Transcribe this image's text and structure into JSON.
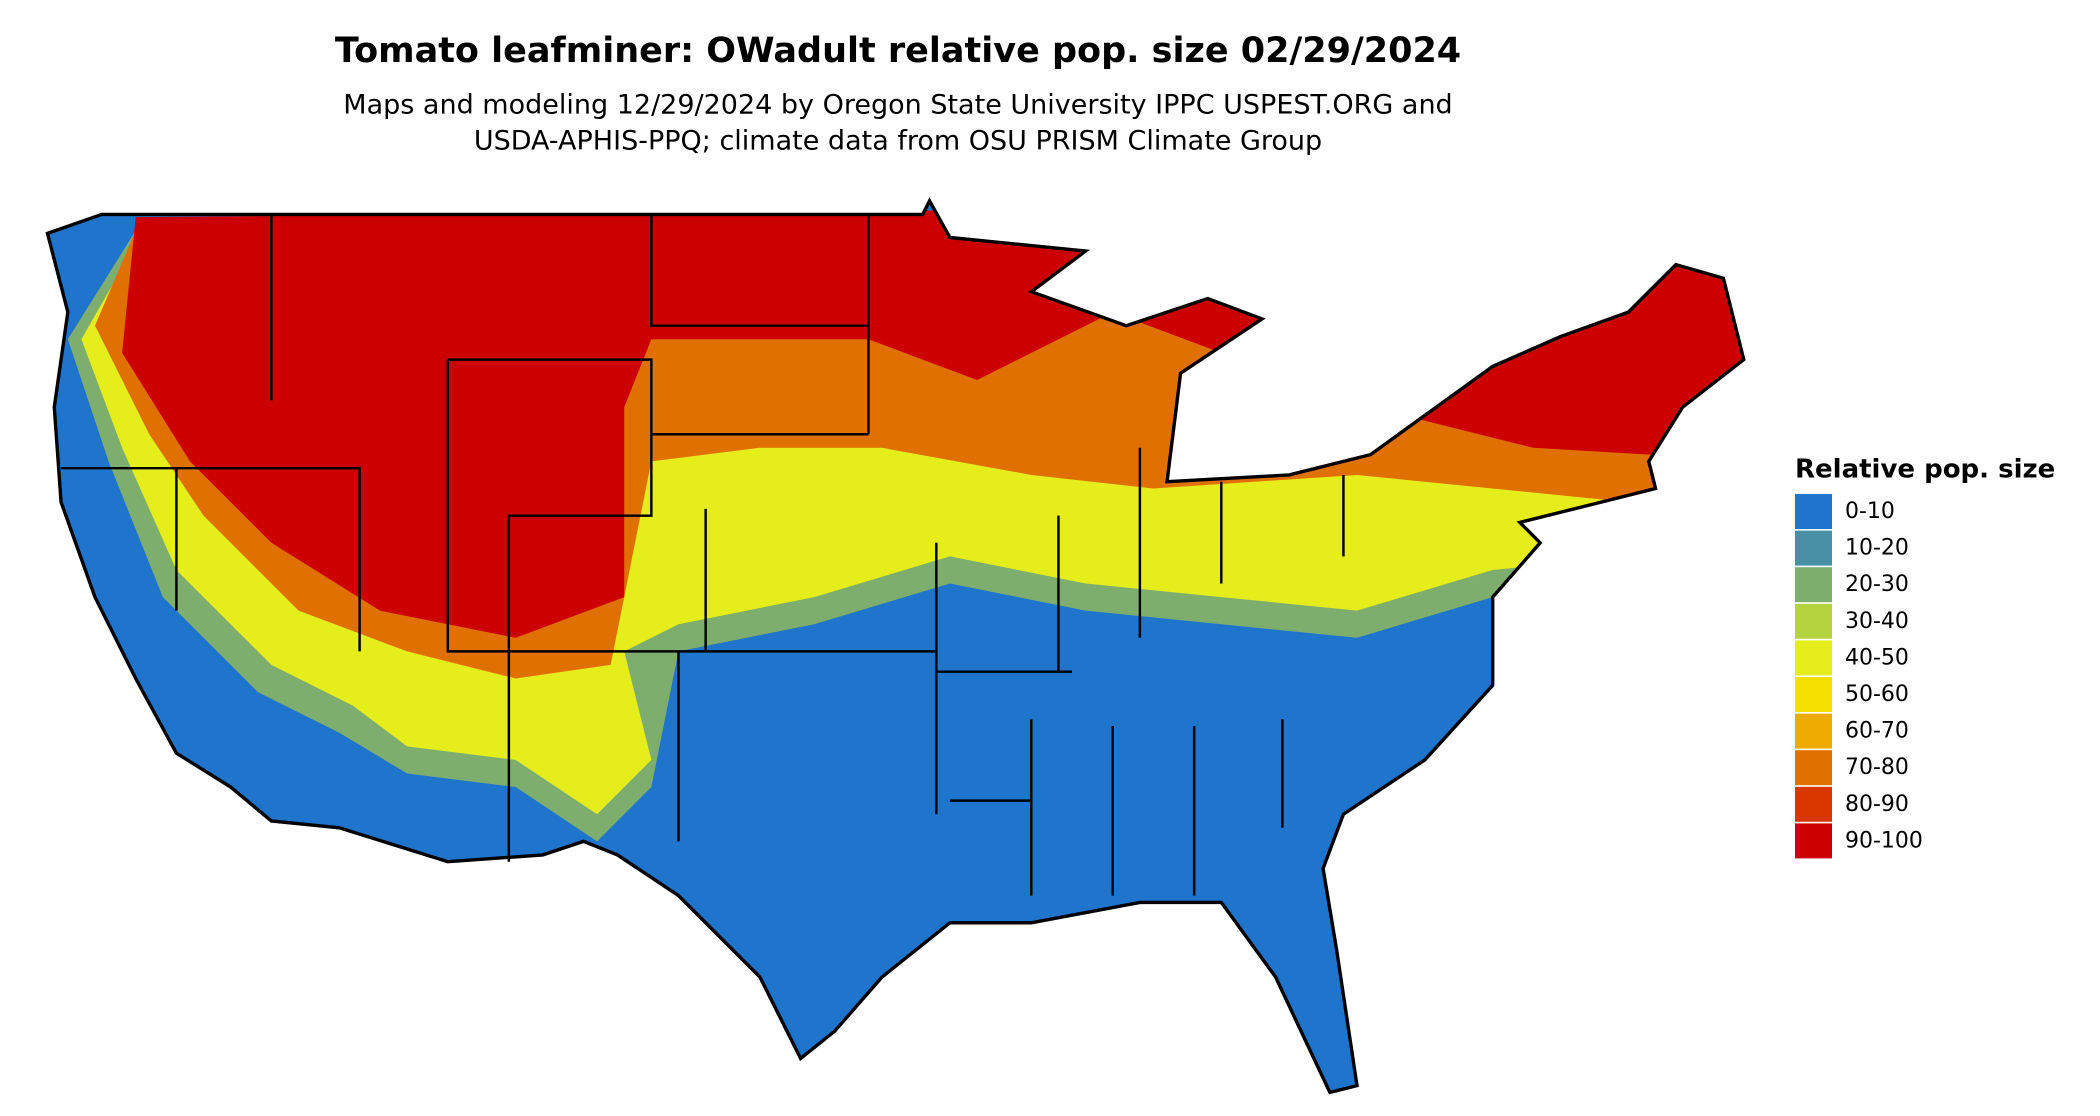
{
  "title": "Tomato leafminer: OWadult relative pop. size 02/29/2024",
  "subtitle": [
    "Maps and modeling 12/29/2024 by Oregon State University IPPC USPEST.ORG and",
    "USDA-APHIS-PPQ; climate data from OSU PRISM Climate Group"
  ],
  "legend": {
    "title": "Relative pop. size",
    "items": [
      {
        "label": "0-10",
        "color": "#1f74cc"
      },
      {
        "label": "10-20",
        "color": "#4a90a4"
      },
      {
        "label": "20-30",
        "color": "#7eae6e"
      },
      {
        "label": "30-40",
        "color": "#b5d23f"
      },
      {
        "label": "40-50",
        "color": "#e5ee1a"
      },
      {
        "label": "50-60",
        "color": "#f5e000"
      },
      {
        "label": "60-70",
        "color": "#eeaa00"
      },
      {
        "label": "70-80",
        "color": "#e07000"
      },
      {
        "label": "80-90",
        "color": "#d83800"
      },
      {
        "label": "90-100",
        "color": "#cc0000"
      }
    ]
  }
}
